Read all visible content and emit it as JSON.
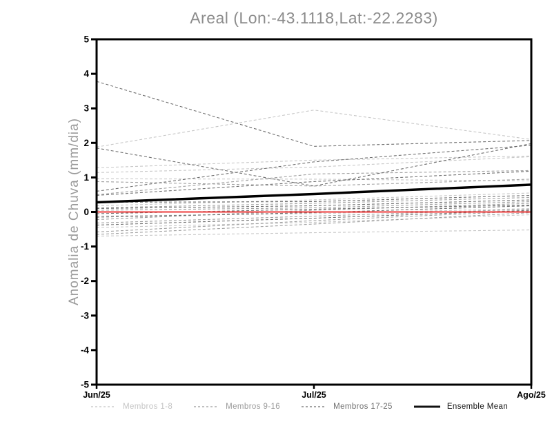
{
  "title": "Areal (Lon:-43.1118,Lat:-22.2283)",
  "chart_data": {
    "type": "line",
    "title": "Areal (Lon:-43.1118,Lat:-22.2283)",
    "xlabel": "",
    "ylabel": "Anomalia de Chuva (mm/dia)",
    "x_categories": [
      "Jun/25",
      "Jul/25",
      "Ago/25"
    ],
    "ylim": [
      -5,
      5
    ],
    "yticks": [
      -5,
      -4,
      -3,
      -2,
      -1,
      0,
      1,
      2,
      3,
      4,
      5
    ],
    "grid": false,
    "legend_position": "bottom",
    "zero_line": {
      "values": [
        0,
        0,
        0
      ],
      "color": "#ee3b3b"
    },
    "ensemble_mean": {
      "name": "Ensemble Mean",
      "color": "#000000",
      "values": [
        0.28,
        0.52,
        0.79
      ]
    },
    "member_groups": [
      {
        "name": "Membros 1-8",
        "color": "#c7c7c7",
        "series": [
          {
            "name": "member",
            "values": [
              1.88,
              2.95,
              2.1
            ]
          },
          {
            "name": "member",
            "values": [
              1.28,
              1.5,
              1.62
            ]
          },
          {
            "name": "member",
            "values": [
              1.14,
              1.3,
              1.6
            ]
          },
          {
            "name": "member",
            "values": [
              0.96,
              0.95,
              0.9
            ]
          },
          {
            "name": "member",
            "values": [
              0.18,
              0.35,
              0.55
            ]
          },
          {
            "name": "member",
            "values": [
              -0.12,
              -0.05,
              0.1
            ]
          },
          {
            "name": "member",
            "values": [
              -0.45,
              -0.3,
              -0.08
            ]
          },
          {
            "name": "member",
            "values": [
              -0.7,
              -0.6,
              -0.52
            ]
          }
        ]
      },
      {
        "name": "Membros 9-16",
        "color": "#9f9f9f",
        "series": [
          {
            "name": "member",
            "values": [
              0.5,
              1.1,
              1.2
            ]
          },
          {
            "name": "member",
            "values": [
              0.12,
              0.25,
              0.42
            ]
          },
          {
            "name": "member",
            "values": [
              0.05,
              0.12,
              0.3
            ]
          },
          {
            "name": "member",
            "values": [
              -0.22,
              0.05,
              0.25
            ]
          },
          {
            "name": "member",
            "values": [
              -0.32,
              -0.12,
              0.08
            ]
          },
          {
            "name": "member",
            "values": [
              -0.58,
              -0.25,
              0.03
            ]
          },
          {
            "name": "member",
            "values": [
              0.88,
              0.75,
              0.95
            ]
          },
          {
            "name": "member",
            "values": [
              -0.65,
              -0.35,
              -0.02
            ]
          }
        ]
      },
      {
        "name": "Membros 17-25",
        "color": "#6f6f6f",
        "series": [
          {
            "name": "member",
            "values": [
              3.78,
              1.9,
              2.07
            ]
          },
          {
            "name": "member",
            "values": [
              1.85,
              0.75,
              1.98
            ]
          },
          {
            "name": "member",
            "values": [
              0.6,
              1.45,
              1.93
            ]
          },
          {
            "name": "member",
            "values": [
              0.48,
              0.88,
              1.18
            ]
          },
          {
            "name": "member",
            "values": [
              0.28,
              0.3,
              0.48
            ]
          },
          {
            "name": "member",
            "values": [
              0.1,
              0.18,
              0.35
            ]
          },
          {
            "name": "member",
            "values": [
              -0.05,
              0.08,
              0.2
            ]
          },
          {
            "name": "member",
            "values": [
              -0.15,
              -0.02,
              0.18
            ]
          },
          {
            "name": "member",
            "values": [
              -0.38,
              -0.18,
              0.05
            ]
          }
        ]
      }
    ]
  },
  "legend": {
    "items": [
      {
        "label": "Membros 1-8",
        "color": "#c4c4c4",
        "dashed": true
      },
      {
        "label": "Membros 9-16",
        "color": "#9a9a9a",
        "dashed": true
      },
      {
        "label": "Membros 17-25",
        "color": "#6e6e6e",
        "dashed": true
      },
      {
        "label": "Ensemble Mean",
        "color": "#111111",
        "dashed": false
      }
    ]
  },
  "colors": {
    "axis": "#000000",
    "title_text": "#8c8c8c",
    "ylabel_text": "#9a9a9a",
    "zero_line": "#ee3b3b",
    "ensemble_mean": "#000000"
  }
}
